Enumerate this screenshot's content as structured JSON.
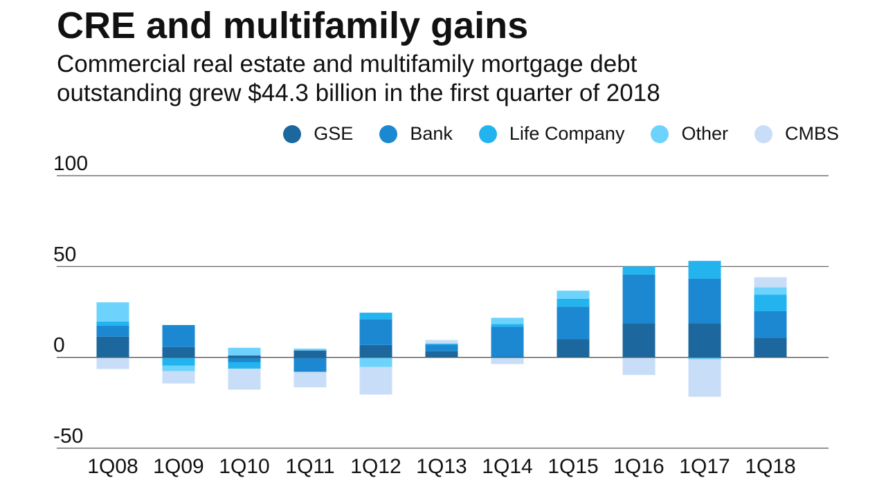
{
  "header": {
    "title": "CRE and multifamily gains",
    "subtitle_line1": "Commercial real estate and multifamily mortgage debt",
    "subtitle_line2": "outstanding grew $44.3 billion in the first quarter of 2018"
  },
  "chart_data": {
    "type": "bar",
    "stacked": true,
    "title": "CRE and multifamily gains",
    "subtitle": "Commercial real estate and multifamily mortgage debt outstanding grew $44.3 billion in the first quarter of 2018",
    "xlabel": "",
    "ylabel": "",
    "ylim": [
      -50,
      100
    ],
    "yticks": [
      100,
      50,
      0,
      -50
    ],
    "grid": true,
    "legend_position": "top-right",
    "categories": [
      "1Q08",
      "1Q09",
      "1Q10",
      "1Q11",
      "1Q12",
      "1Q13",
      "1Q14",
      "1Q15",
      "1Q16",
      "1Q17",
      "1Q18"
    ],
    "series": [
      {
        "name": "GSE",
        "color": "#1b679e",
        "values": [
          11.4,
          5.7,
          1.0,
          3.8,
          6.8,
          3.4,
          0.0,
          10.1,
          18.7,
          18.7,
          10.7
        ]
      },
      {
        "name": "Bank",
        "color": "#1b88d1",
        "values": [
          6.0,
          12.1,
          -2.6,
          -8.0,
          14.0,
          3.6,
          16.8,
          17.8,
          26.9,
          24.6,
          14.7
        ]
      },
      {
        "name": "Life Company",
        "color": "#23b4ef",
        "values": [
          2.3,
          -4.5,
          -3.6,
          0.0,
          3.8,
          0.6,
          1.6,
          4.4,
          4.4,
          9.8,
          9.1
        ]
      },
      {
        "name": "Other",
        "color": "#6dd3fd",
        "values": [
          10.6,
          -3.1,
          4.3,
          1.0,
          -5.3,
          0.0,
          3.4,
          4.4,
          0.0,
          -1.1,
          4.0
        ]
      },
      {
        "name": "CMBS",
        "color": "#c8def8",
        "values": [
          -6.4,
          -6.8,
          -11.6,
          -8.5,
          -15.2,
          2.0,
          -3.7,
          0.0,
          -9.7,
          -20.6,
          5.6
        ]
      }
    ]
  }
}
